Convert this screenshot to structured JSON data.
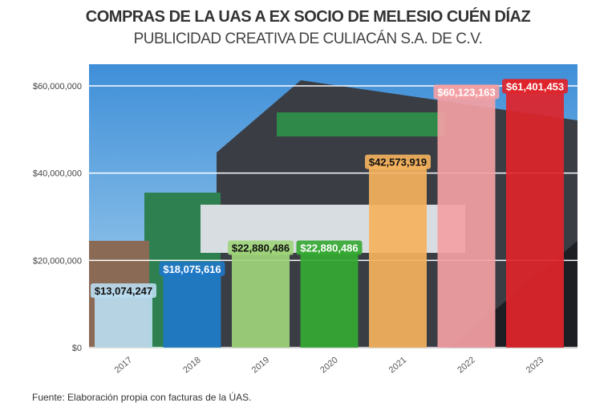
{
  "chart_data": {
    "type": "bar",
    "title": "COMPRAS DE LA UAS A EX SOCIO DE MELESIO CUÉN DÍAZ",
    "subtitle": "PUBLICIDAD CREATIVA DE CULIACÁN S.A. DE C.V.",
    "categories": [
      "2017",
      "2018",
      "2019",
      "2020",
      "2021",
      "2022",
      "2023"
    ],
    "values": [
      13074247,
      18075616,
      22880486,
      22880486,
      42573919,
      60123163,
      61401453
    ],
    "data_labels": [
      "$13,074,247",
      "$18,075,616",
      "$22,880,486",
      "$22,880,486",
      "$42,573,919",
      "$60,123,163",
      "$61,401,453"
    ],
    "colors": [
      "#b9dcef",
      "#1f78c8",
      "#9fd47a",
      "#35a832",
      "#f5b25e",
      "#f4a0a4",
      "#e0242b"
    ],
    "label_text_colors": [
      "#111",
      "#fff",
      "#111",
      "#fff",
      "#111",
      "#fff",
      "#fff"
    ],
    "yticks": [
      0,
      20000000,
      40000000,
      60000000
    ],
    "ytick_labels": [
      "$0",
      "$20,000,000",
      "$40,000,000",
      "$60,000,000"
    ],
    "ylim": [
      0,
      65000000
    ],
    "grid": true,
    "background": "photo of building"
  },
  "source": "Fuente: Elaboración propia con facturas de la ÚAS."
}
